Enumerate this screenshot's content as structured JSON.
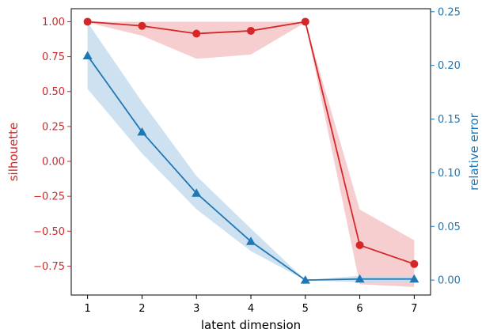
{
  "chart_data": {
    "type": "line",
    "xlabel": "latent dimension",
    "x": [
      1,
      2,
      3,
      4,
      5,
      6,
      7
    ],
    "xlim": [
      0.7,
      7.3
    ],
    "xticks": [
      "1",
      "2",
      "3",
      "4",
      "5",
      "6",
      "7"
    ],
    "grid": false,
    "legend": "none",
    "axes": {
      "left": {
        "label": "silhouette",
        "color": "#d62728",
        "ylim": [
          -0.9571,
          1.0933
        ],
        "ticks": [
          1.0,
          0.75,
          0.5,
          0.25,
          0.0,
          -0.25,
          -0.5,
          -0.75
        ],
        "tick_labels": [
          "1.00",
          "0.75",
          "0.50",
          "0.25",
          "0.00",
          "−0.25",
          "−0.50",
          "−0.75"
        ]
      },
      "right": {
        "label": "relative error",
        "color": "#1f77b4",
        "ylim": [
          -0.0139,
          0.2528
        ],
        "ticks": [
          0.25,
          0.2,
          0.15,
          0.1,
          0.05,
          0.0
        ],
        "tick_labels": [
          "0.25",
          "0.20",
          "0.15",
          "0.10",
          "0.05",
          "0.00"
        ]
      }
    },
    "series": [
      {
        "axis": "left",
        "marker": "circle",
        "color": "#d62728",
        "band_color": "#f4c6c8",
        "values": [
          1.0,
          0.97,
          0.915,
          0.935,
          1.0,
          -0.6,
          -0.735
        ],
        "band_lower": [
          0.995,
          0.9,
          0.735,
          0.765,
          0.995,
          -0.88,
          -0.9
        ],
        "band_upper": [
          1.0,
          1.0,
          1.0,
          1.0,
          1.0,
          -0.345,
          -0.565
        ]
      },
      {
        "axis": "right",
        "marker": "triangle",
        "color": "#1f77b4",
        "band_color": "#c5dcee",
        "values": [
          0.209,
          0.138,
          0.081,
          0.036,
          0.0,
          0.001,
          0.001
        ],
        "band_lower": [
          0.178,
          0.118,
          0.066,
          0.027,
          0.0,
          -0.002,
          -0.002
        ],
        "band_upper": [
          0.24,
          0.166,
          0.097,
          0.048,
          0.0,
          0.004,
          0.004
        ]
      }
    ]
  }
}
